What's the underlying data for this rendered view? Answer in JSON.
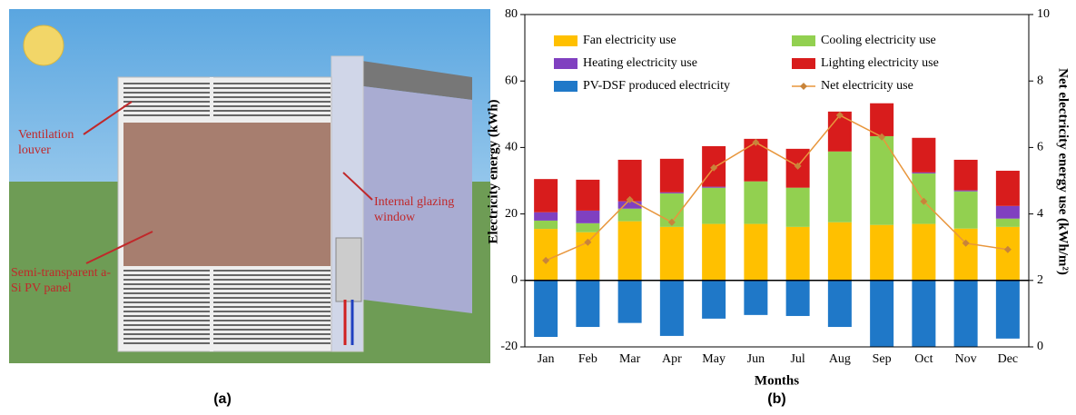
{
  "illustration": {
    "labels": [
      "Ventilation louver",
      "Internal glazing window",
      "Semi-transparent a-Si PV panel"
    ],
    "caption": "(a)"
  },
  "chart_data": {
    "type": "bar",
    "stacked": true,
    "caption": "(b)",
    "x_label": "Months",
    "y_label": "Electricity energy (kWh)",
    "y2_label": "Net electricity energy use (kWh/m²)",
    "categories": [
      "Jan",
      "Feb",
      "Mar",
      "Apr",
      "May",
      "Jun",
      "Jul",
      "Aug",
      "Sep",
      "Oct",
      "Nov",
      "Dec"
    ],
    "series": [
      {
        "name": "Fan electricity use",
        "color": "#ffc000",
        "values": [
          15.5,
          14.5,
          17.8,
          16.1,
          17,
          17,
          16.1,
          17.5,
          16.7,
          17,
          15.6,
          16.1
        ]
      },
      {
        "name": "Cooling electricity use",
        "color": "#92d050",
        "values": [
          2.5,
          2.7,
          3.8,
          10.1,
          10.9,
          12.8,
          11.8,
          21.3,
          26.7,
          15.2,
          11.2,
          2.5
        ]
      },
      {
        "name": "Heating electricity use",
        "color": "#8040c0",
        "values": [
          2.5,
          3.8,
          2.2,
          0.3,
          0.3,
          0,
          0,
          0,
          0,
          0.3,
          0.3,
          3.8
        ]
      },
      {
        "name": "Lighting electricity use",
        "color": "#d81c1c",
        "values": [
          10,
          9.3,
          12.5,
          10.1,
          12.2,
          12.8,
          11.7,
          12,
          9.9,
          10.4,
          9.2,
          10.6
        ]
      },
      {
        "name": "PV-DSF produced electricity",
        "color": "#1f78c8",
        "values": [
          -17,
          -14,
          -12.8,
          -16.7,
          -11.5,
          -10.4,
          -10.7,
          -14,
          -20,
          -20,
          -20,
          -17.5
        ]
      },
      {
        "name": "Net electricity use",
        "color": "#e8963c",
        "type": "line",
        "axis": "y2",
        "values": [
          2.6,
          3.15,
          4.43,
          3.75,
          5.39,
          6.15,
          5.44,
          6.97,
          6.32,
          4.38,
          3.12,
          2.93
        ]
      }
    ],
    "ylim": [
      -20,
      80
    ],
    "yticks": [
      -20,
      0,
      20,
      40,
      60,
      80
    ],
    "y2lim": [
      0,
      10
    ],
    "y2ticks": [
      0,
      2,
      4,
      6,
      8,
      10
    ],
    "legend": "upper left"
  }
}
